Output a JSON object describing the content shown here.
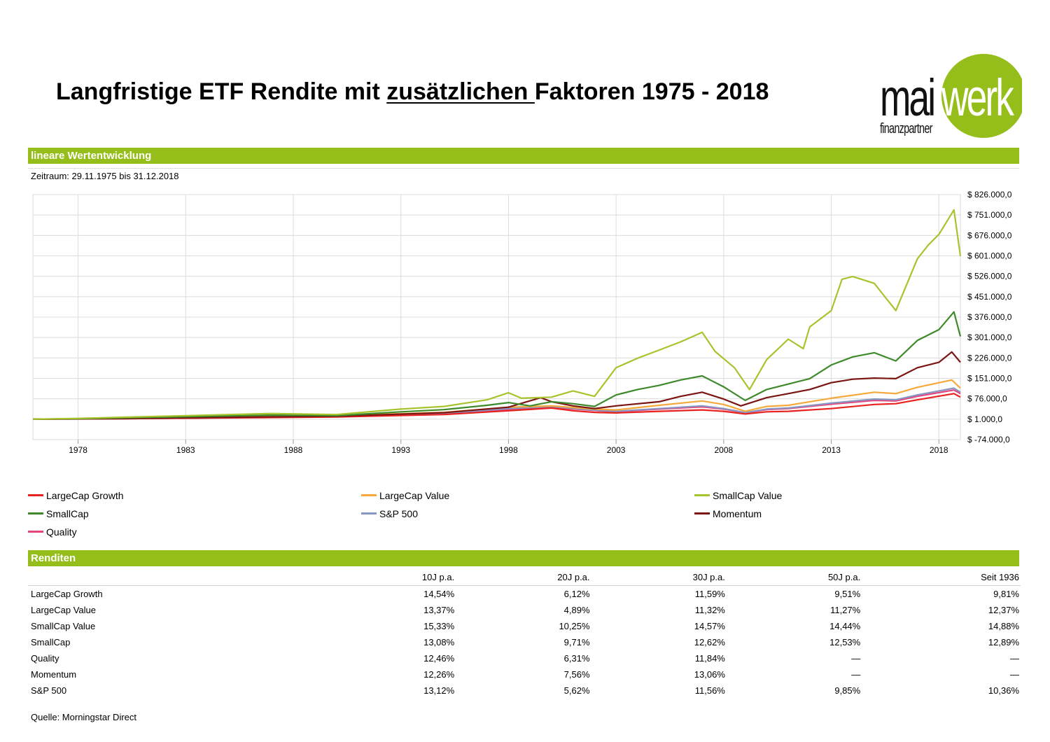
{
  "title": {
    "before": "Langfristige ETF Rendite mit ",
    "underlined": "zusätzlichen ",
    "after": "Faktoren 1975 - 2018"
  },
  "logo": {
    "left": "mai",
    "right": "werk",
    "sub": "finanzpartner",
    "green": "#95be1a"
  },
  "section1": {
    "label": "lineare Wertentwicklung"
  },
  "zeitraum": "Zeitraum: 29.11.1975 bis 31.12.2018",
  "chart_data": {
    "type": "line",
    "x_range": [
      1975.9,
      2019.0
    ],
    "x_ticks": [
      1978,
      1983,
      1988,
      1993,
      1998,
      2003,
      2008,
      2013,
      2018
    ],
    "x_tick_labels": [
      "1978",
      "1983",
      "1988",
      "1993",
      "1998",
      "2003",
      "2008",
      "2013",
      "2018"
    ],
    "y_range": [
      -74000,
      826000
    ],
    "y_ticks": [
      826000,
      751000,
      676000,
      601000,
      526000,
      451000,
      376000,
      301000,
      226000,
      151000,
      76000,
      1000,
      -74000
    ],
    "y_tick_labels": [
      "$ 826.000,0",
      "$ 751.000,0",
      "$ 676.000,0",
      "$ 601.000,0",
      "$ 526.000,0",
      "$ 451.000,0",
      "$ 376.000,0",
      "$ 301.000,0",
      "$ 226.000,0",
      "$ 151.000,0",
      "$ 76.000,0",
      "$ 1.000,0",
      "$ -74.000,0"
    ],
    "grid": true,
    "legend": "bottom",
    "series": [
      {
        "name": "LargeCap Growth",
        "color": "#e8221f",
        "points": [
          [
            1975.9,
            1000
          ],
          [
            1980,
            3000
          ],
          [
            1985,
            6000
          ],
          [
            1990,
            9000
          ],
          [
            1995,
            18000
          ],
          [
            1998,
            32000
          ],
          [
            2000,
            42000
          ],
          [
            2001,
            32000
          ],
          [
            2002,
            26000
          ],
          [
            2003,
            24000
          ],
          [
            2005,
            30000
          ],
          [
            2007,
            35000
          ],
          [
            2008,
            30000
          ],
          [
            2009,
            20000
          ],
          [
            2010,
            28000
          ],
          [
            2011,
            30000
          ],
          [
            2013,
            40000
          ],
          [
            2015,
            55000
          ],
          [
            2016,
            58000
          ],
          [
            2017,
            72000
          ],
          [
            2018.7,
            95000
          ],
          [
            2019.0,
            82000
          ]
        ]
      },
      {
        "name": "LargeCap Value",
        "color": "#f6a93b",
        "points": [
          [
            1975.9,
            1000
          ],
          [
            1980,
            4000
          ],
          [
            1985,
            9000
          ],
          [
            1990,
            14000
          ],
          [
            1995,
            26000
          ],
          [
            1998,
            45000
          ],
          [
            2000,
            50000
          ],
          [
            2002,
            38000
          ],
          [
            2003,
            35000
          ],
          [
            2005,
            52000
          ],
          [
            2007,
            68000
          ],
          [
            2008,
            55000
          ],
          [
            2009,
            30000
          ],
          [
            2010,
            48000
          ],
          [
            2011,
            52000
          ],
          [
            2013,
            78000
          ],
          [
            2015,
            100000
          ],
          [
            2016,
            95000
          ],
          [
            2017,
            118000
          ],
          [
            2018.6,
            145000
          ],
          [
            2019.0,
            115000
          ]
        ]
      },
      {
        "name": "SmallCap Value",
        "color": "#a6c42c",
        "points": [
          [
            1975.9,
            1000
          ],
          [
            1978,
            4000
          ],
          [
            1980,
            8000
          ],
          [
            1983,
            14000
          ],
          [
            1987,
            22000
          ],
          [
            1990,
            18000
          ],
          [
            1993,
            38000
          ],
          [
            1995,
            48000
          ],
          [
            1997,
            72000
          ],
          [
            1998,
            98000
          ],
          [
            1998.6,
            78000
          ],
          [
            2000,
            82000
          ],
          [
            2001,
            105000
          ],
          [
            2002,
            85000
          ],
          [
            2003,
            190000
          ],
          [
            2004,
            225000
          ],
          [
            2005,
            255000
          ],
          [
            2006,
            285000
          ],
          [
            2007,
            320000
          ],
          [
            2007.6,
            250000
          ],
          [
            2008.5,
            190000
          ],
          [
            2009.2,
            110000
          ],
          [
            2010,
            220000
          ],
          [
            2011,
            295000
          ],
          [
            2011.7,
            260000
          ],
          [
            2012,
            340000
          ],
          [
            2013,
            400000
          ],
          [
            2013.5,
            515000
          ],
          [
            2014,
            525000
          ],
          [
            2015,
            500000
          ],
          [
            2016,
            400000
          ],
          [
            2017,
            590000
          ],
          [
            2017.5,
            640000
          ],
          [
            2018,
            680000
          ],
          [
            2018.7,
            770000
          ],
          [
            2019.0,
            600000
          ]
        ]
      },
      {
        "name": "SmallCap",
        "color": "#3e8a2b",
        "points": [
          [
            1975.9,
            1000
          ],
          [
            1978,
            3000
          ],
          [
            1980,
            6000
          ],
          [
            1983,
            10000
          ],
          [
            1987,
            16000
          ],
          [
            1990,
            14000
          ],
          [
            1993,
            28000
          ],
          [
            1995,
            36000
          ],
          [
            1997,
            52000
          ],
          [
            1998,
            62000
          ],
          [
            1999,
            50000
          ],
          [
            2000,
            65000
          ],
          [
            2001,
            58000
          ],
          [
            2002,
            48000
          ],
          [
            2003,
            90000
          ],
          [
            2004,
            110000
          ],
          [
            2005,
            125000
          ],
          [
            2006,
            145000
          ],
          [
            2007,
            160000
          ],
          [
            2008,
            120000
          ],
          [
            2009,
            70000
          ],
          [
            2010,
            110000
          ],
          [
            2011,
            130000
          ],
          [
            2012,
            150000
          ],
          [
            2013,
            200000
          ],
          [
            2014,
            230000
          ],
          [
            2015,
            245000
          ],
          [
            2016,
            215000
          ],
          [
            2017,
            290000
          ],
          [
            2018,
            330000
          ],
          [
            2018.7,
            395000
          ],
          [
            2019.0,
            305000
          ]
        ]
      },
      {
        "name": "S&P 500",
        "color": "#8896c4",
        "points": [
          [
            1975.9,
            1000
          ],
          [
            1980,
            3000
          ],
          [
            1985,
            7000
          ],
          [
            1990,
            11000
          ],
          [
            1995,
            22000
          ],
          [
            1998,
            40000
          ],
          [
            2000,
            48000
          ],
          [
            2002,
            34000
          ],
          [
            2003,
            30000
          ],
          [
            2005,
            40000
          ],
          [
            2007,
            50000
          ],
          [
            2008,
            40000
          ],
          [
            2009,
            25000
          ],
          [
            2010,
            38000
          ],
          [
            2011,
            42000
          ],
          [
            2013,
            60000
          ],
          [
            2015,
            75000
          ],
          [
            2016,
            72000
          ],
          [
            2017,
            90000
          ],
          [
            2018.7,
            115000
          ],
          [
            2019.0,
            100000
          ]
        ]
      },
      {
        "name": "Momentum",
        "color": "#7b1513",
        "points": [
          [
            1975.9,
            1000
          ],
          [
            1980,
            3500
          ],
          [
            1985,
            8000
          ],
          [
            1990,
            12000
          ],
          [
            1995,
            25000
          ],
          [
            1998,
            45000
          ],
          [
            1999.5,
            80000
          ],
          [
            2000,
            65000
          ],
          [
            2001,
            50000
          ],
          [
            2002,
            40000
          ],
          [
            2003,
            50000
          ],
          [
            2005,
            65000
          ],
          [
            2006,
            85000
          ],
          [
            2007,
            100000
          ],
          [
            2008,
            75000
          ],
          [
            2008.8,
            50000
          ],
          [
            2010,
            80000
          ],
          [
            2011,
            95000
          ],
          [
            2012,
            110000
          ],
          [
            2013,
            135000
          ],
          [
            2014,
            148000
          ],
          [
            2015,
            152000
          ],
          [
            2016,
            150000
          ],
          [
            2017,
            190000
          ],
          [
            2018,
            210000
          ],
          [
            2018.6,
            248000
          ],
          [
            2019.0,
            210000
          ]
        ]
      },
      {
        "name": "Quality",
        "color": "#e5457c",
        "points": [
          [
            1975.9,
            1000
          ],
          [
            1980,
            3000
          ],
          [
            1985,
            6500
          ],
          [
            1990,
            10000
          ],
          [
            1995,
            20000
          ],
          [
            1998,
            36000
          ],
          [
            2000,
            44000
          ],
          [
            2002,
            33000
          ],
          [
            2003,
            28000
          ],
          [
            2005,
            38000
          ],
          [
            2007,
            46000
          ],
          [
            2008,
            38000
          ],
          [
            2009,
            24000
          ],
          [
            2010,
            36000
          ],
          [
            2011,
            40000
          ],
          [
            2013,
            56000
          ],
          [
            2015,
            70000
          ],
          [
            2016,
            68000
          ],
          [
            2017,
            85000
          ],
          [
            2018.7,
            108000
          ],
          [
            2019.0,
            95000
          ]
        ]
      }
    ]
  },
  "legend_items": [
    {
      "label": "LargeCap Growth",
      "color": "#e8221f"
    },
    {
      "label": "LargeCap Value",
      "color": "#f6a93b"
    },
    {
      "label": "SmallCap Value",
      "color": "#a6c42c"
    },
    {
      "label": "SmallCap",
      "color": "#3e8a2b"
    },
    {
      "label": "S&P 500",
      "color": "#8896c4"
    },
    {
      "label": "Momentum",
      "color": "#7b1513"
    },
    {
      "label": "Quality",
      "color": "#e5457c"
    }
  ],
  "section2": {
    "label": "Renditen"
  },
  "returns_table": {
    "headers": [
      "",
      "10J p.a.",
      "20J p.a.",
      "30J p.a.",
      "50J p.a.",
      "Seit 1936"
    ],
    "rows": [
      [
        "LargeCap Growth",
        "14,54%",
        "6,12%",
        "11,59%",
        "9,51%",
        "9,81%"
      ],
      [
        "LargeCap Value",
        "13,37%",
        "4,89%",
        "11,32%",
        "11,27%",
        "12,37%"
      ],
      [
        "SmallCap Value",
        "15,33%",
        "10,25%",
        "14,57%",
        "14,44%",
        "14,88%"
      ],
      [
        "SmallCap",
        "13,08%",
        "9,71%",
        "12,62%",
        "12,53%",
        "12,89%"
      ],
      [
        "Quality",
        "12,46%",
        "6,31%",
        "11,84%",
        "—",
        "—"
      ],
      [
        "Momentum",
        "12,26%",
        "7,56%",
        "13,06%",
        "—",
        "—"
      ],
      [
        "S&P 500",
        "13,12%",
        "5,62%",
        "11,56%",
        "9,85%",
        "10,36%"
      ]
    ]
  },
  "source": "Quelle: Morningstar Direct"
}
